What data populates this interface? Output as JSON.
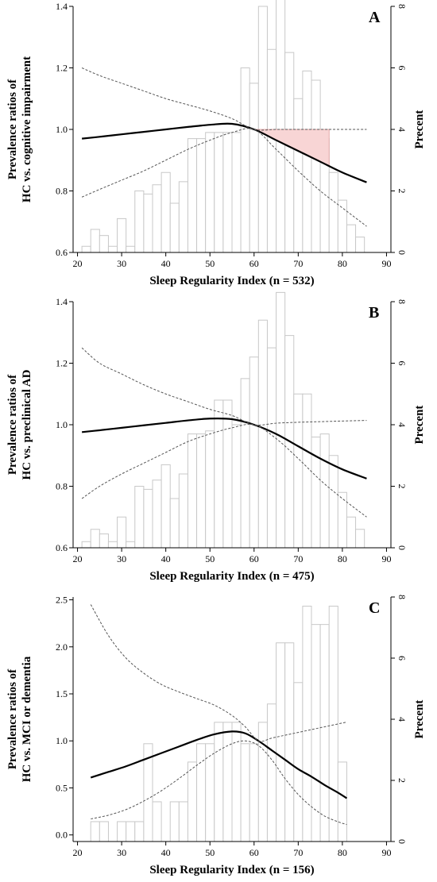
{
  "chart_data": [
    {
      "type": "line",
      "panel_label": "A",
      "xlabel": "Sleep Regularity Index  (n = 532)",
      "ylabel_lines": [
        "Prevalence ratios of",
        "HC vs. cognitive impairment"
      ],
      "y2label": "Precent",
      "xlim": [
        19,
        91
      ],
      "ylim": [
        0.6,
        1.4
      ],
      "y2lim": [
        0,
        8
      ],
      "x_ticks": [
        20,
        30,
        40,
        50,
        60,
        70,
        80,
        90
      ],
      "y_ticks": [
        0.6,
        0.8,
        1.0,
        1.2,
        1.4
      ],
      "y_tick_labels": [
        "0.6",
        "0.8",
        "1.0",
        "1.2",
        "1.4"
      ],
      "y2_ticks": [
        0,
        2,
        4,
        6,
        8
      ],
      "histogram": {
        "bin_starts": [
          21,
          23,
          25,
          27,
          29,
          31,
          33,
          35,
          37,
          39,
          41,
          43,
          45,
          47,
          49,
          51,
          53,
          55,
          57,
          59,
          61,
          63,
          65,
          67,
          69,
          71,
          73,
          75,
          77,
          79,
          81,
          83
        ],
        "bin_width": 2,
        "percent": [
          0.2,
          0.75,
          0.55,
          0.2,
          1.1,
          0.2,
          2.0,
          1.9,
          2.2,
          2.6,
          1.6,
          2.3,
          3.7,
          3.7,
          3.9,
          3.9,
          3.9,
          3.9,
          6.0,
          5.5,
          8.0,
          6.6,
          8.4,
          6.5,
          5.0,
          5.9,
          5.6,
          3.7,
          2.6,
          1.7,
          0.9,
          0.5
        ]
      },
      "series": [
        {
          "role": "estimate",
          "x": [
            21,
            25,
            30,
            35,
            40,
            45,
            50,
            55,
            60,
            65,
            70,
            75,
            80,
            85.5
          ],
          "y": [
            0.97,
            0.976,
            0.984,
            0.992,
            1.0,
            1.008,
            1.015,
            1.018,
            1.0,
            0.965,
            0.93,
            0.895,
            0.86,
            0.828
          ]
        },
        {
          "role": "upper_ci",
          "x": [
            21,
            25,
            30,
            35,
            40,
            45,
            50,
            55,
            60,
            65,
            70,
            75,
            80,
            85.5
          ],
          "y": [
            1.2,
            1.175,
            1.15,
            1.125,
            1.1,
            1.08,
            1.06,
            1.035,
            1.0,
            1.0,
            1.0,
            1.0,
            1.0,
            1.0
          ]
        },
        {
          "role": "lower_ci",
          "x": [
            21,
            25,
            30,
            35,
            40,
            45,
            50,
            55,
            60,
            65,
            70,
            75,
            80,
            85.5
          ],
          "y": [
            0.78,
            0.805,
            0.835,
            0.865,
            0.9,
            0.935,
            0.965,
            0.99,
            1.0,
            0.935,
            0.865,
            0.8,
            0.745,
            0.685
          ]
        }
      ],
      "shaded_region": {
        "x": [
          60,
          77
        ],
        "upper": 1.0
      }
    },
    {
      "type": "line",
      "panel_label": "B",
      "xlabel": "Sleep Regularity Index  (n = 475)",
      "ylabel_lines": [
        "Prevalence ratios of",
        "HC vs. preclinical AD"
      ],
      "y2label": "Precent",
      "xlim": [
        19,
        91
      ],
      "ylim": [
        0.6,
        1.4
      ],
      "y2lim": [
        0,
        8
      ],
      "x_ticks": [
        20,
        30,
        40,
        50,
        60,
        70,
        80,
        90
      ],
      "y_ticks": [
        0.6,
        0.8,
        1.0,
        1.2,
        1.4
      ],
      "y_tick_labels": [
        "0.6",
        "0.8",
        "1.0",
        "1.2",
        "1.4"
      ],
      "y2_ticks": [
        0,
        2,
        4,
        6,
        8
      ],
      "histogram": {
        "bin_starts": [
          21,
          23,
          25,
          27,
          29,
          31,
          33,
          35,
          37,
          39,
          41,
          43,
          45,
          47,
          49,
          51,
          53,
          55,
          57,
          59,
          61,
          63,
          65,
          67,
          69,
          71,
          73,
          75,
          77,
          79,
          81,
          83
        ],
        "bin_width": 2,
        "percent": [
          0.2,
          0.6,
          0.45,
          0.2,
          1.0,
          0.2,
          2.0,
          1.9,
          2.2,
          2.7,
          1.6,
          2.4,
          3.7,
          3.7,
          3.8,
          4.8,
          4.8,
          4.0,
          5.5,
          6.2,
          7.4,
          6.5,
          8.3,
          6.9,
          5.0,
          5.0,
          3.6,
          3.7,
          3.0,
          1.8,
          1.0,
          0.6
        ]
      },
      "series": [
        {
          "role": "estimate",
          "x": [
            21,
            25,
            30,
            35,
            40,
            45,
            50,
            55,
            60,
            65,
            70,
            75,
            80,
            85.5
          ],
          "y": [
            0.976,
            0.982,
            0.99,
            0.998,
            1.006,
            1.014,
            1.02,
            1.018,
            1.0,
            0.97,
            0.93,
            0.89,
            0.855,
            0.825
          ]
        },
        {
          "role": "upper_ci",
          "x": [
            21,
            25,
            30,
            35,
            40,
            45,
            50,
            55,
            60,
            65,
            70,
            75,
            80,
            85.5
          ],
          "y": [
            1.25,
            1.2,
            1.165,
            1.13,
            1.1,
            1.075,
            1.05,
            1.03,
            1.0,
            1.005,
            1.008,
            1.01,
            1.012,
            1.014
          ]
        },
        {
          "role": "lower_ci",
          "x": [
            21,
            25,
            30,
            35,
            40,
            45,
            50,
            55,
            60,
            65,
            70,
            75,
            80,
            85.5
          ],
          "y": [
            0.76,
            0.8,
            0.84,
            0.875,
            0.91,
            0.945,
            0.97,
            0.99,
            1.0,
            0.955,
            0.89,
            0.82,
            0.76,
            0.7
          ]
        }
      ]
    },
    {
      "type": "line",
      "panel_label": "C",
      "xlabel": "Sleep Regularity Index  (n = 156)",
      "ylabel_lines": [
        "Prevalence ratios of",
        "HC vs. MCI or dementia"
      ],
      "y2label": "Precent",
      "xlim": [
        19,
        91
      ],
      "ylim": [
        -0.07,
        2.53
      ],
      "y2lim": [
        0,
        8
      ],
      "x_ticks": [
        20,
        30,
        40,
        50,
        60,
        70,
        80,
        90
      ],
      "y_ticks": [
        0.0,
        0.5,
        1.0,
        1.5,
        2.0,
        2.5
      ],
      "y_tick_labels": [
        "0.0",
        "0.5",
        "1.0",
        "1.5",
        "2.0",
        "2.5"
      ],
      "y2_ticks": [
        0,
        2,
        4,
        6,
        8
      ],
      "histogram": {
        "bin_starts": [
          23,
          25,
          29,
          31,
          33,
          35,
          37,
          41,
          43,
          45,
          47,
          49,
          51,
          53,
          55,
          57,
          59,
          61,
          63,
          65,
          67,
          69,
          71,
          73,
          75,
          77,
          79
        ],
        "bin_width": 2,
        "percent": [
          0.65,
          0.65,
          0.65,
          0.65,
          0.65,
          3.2,
          1.3,
          1.3,
          1.3,
          2.6,
          3.2,
          3.2,
          3.9,
          3.9,
          3.9,
          3.2,
          3.2,
          3.9,
          4.5,
          6.5,
          6.5,
          5.2,
          7.7,
          7.1,
          7.1,
          7.7,
          2.6
        ]
      },
      "series": [
        {
          "role": "estimate",
          "x": [
            23,
            27,
            31,
            35,
            39,
            43,
            47,
            51,
            55,
            58,
            61,
            64,
            67,
            70,
            73,
            76,
            79,
            81
          ],
          "y": [
            0.61,
            0.67,
            0.73,
            0.8,
            0.87,
            0.94,
            1.01,
            1.07,
            1.1,
            1.08,
            1.0,
            0.9,
            0.8,
            0.7,
            0.62,
            0.53,
            0.45,
            0.39
          ]
        },
        {
          "role": "upper_ci",
          "x": [
            23,
            27,
            31,
            35,
            39,
            43,
            47,
            51,
            55,
            58,
            61,
            64,
            67,
            70,
            73,
            76,
            79,
            81
          ],
          "y": [
            2.45,
            2.12,
            1.88,
            1.72,
            1.6,
            1.52,
            1.45,
            1.38,
            1.27,
            1.15,
            1.0,
            1.03,
            1.06,
            1.09,
            1.12,
            1.15,
            1.18,
            1.2
          ]
        },
        {
          "role": "lower_ci",
          "x": [
            23,
            27,
            31,
            35,
            39,
            43,
            47,
            51,
            55,
            58,
            61,
            64,
            67,
            70,
            73,
            76,
            79,
            81
          ],
          "y": [
            0.17,
            0.21,
            0.27,
            0.36,
            0.47,
            0.6,
            0.74,
            0.87,
            0.97,
            1.0,
            0.95,
            0.8,
            0.6,
            0.43,
            0.3,
            0.2,
            0.14,
            0.11
          ]
        }
      ]
    }
  ]
}
